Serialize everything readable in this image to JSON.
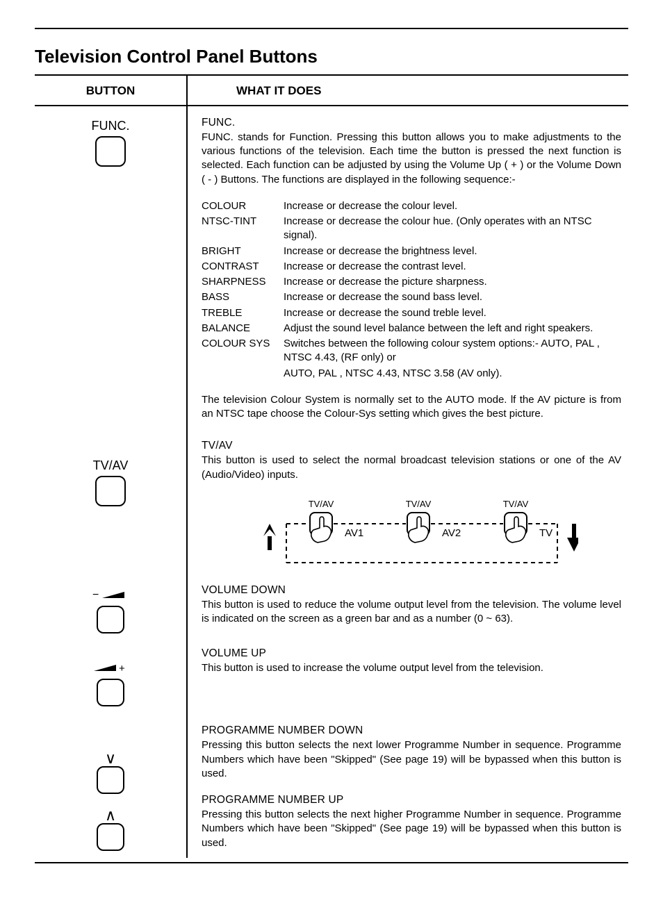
{
  "page": {
    "title": "Television Control Panel Buttons",
    "columns": {
      "button": "BUTTON",
      "what": "WHAT IT DOES"
    },
    "text_color": "#000000",
    "bg_color": "#ffffff"
  },
  "func": {
    "button_label": "FUNC.",
    "heading": "FUNC.",
    "intro": "FUNC. stands for Function. Pressing this button allows you to make adjustments to the various functions of the television. Each time the button is pressed the next function is selected. Each function can be adjusted by using the Volume Up ( + ) or the Volume Down ( - ) Buttons. The functions are displayed in the following sequence:-",
    "items": [
      {
        "name": "COLOUR",
        "desc": "Increase or decrease the colour level."
      },
      {
        "name": "NTSC-TINT",
        "desc": "Increase or decrease the colour hue. (Only operates with an NTSC signal)."
      },
      {
        "name": "BRIGHT",
        "desc": "Increase or decrease the brightness level."
      },
      {
        "name": "CONTRAST",
        "desc": "Increase or decrease the contrast level."
      },
      {
        "name": "SHARPNESS",
        "desc": "Increase or decrease the picture sharpness."
      },
      {
        "name": "BASS",
        "desc": "Increase or decrease the sound bass level."
      },
      {
        "name": "TREBLE",
        "desc": "Increase or decrease the sound treble level."
      },
      {
        "name": "BALANCE",
        "desc": "Adjust the sound level balance between the left and right speakers."
      },
      {
        "name": "COLOUR SYS",
        "desc": "Switches between the following colour system options:- AUTO, PAL , NTSC 4.43, (RF only) or"
      }
    ],
    "colour_sys_extra": "AUTO, PAL , NTSC 4.43, NTSC 3.58 (AV only).",
    "note": "The television Colour System is normally set to the AUTO mode. lf the AV picture is from an NTSC tape choose the Colour-Sys setting which gives the best picture."
  },
  "tvav": {
    "button_label": "TV/AV",
    "heading": "TV/AV",
    "body": "This button is used to select the normal broadcast television stations or one of the AV (Audio/Video) inputs.",
    "diagram": {
      "tick_label": "TV/AV",
      "steps": [
        "AV1",
        "AV2",
        "TV"
      ],
      "stroke": "#000000",
      "dash": "6,5"
    }
  },
  "vol_down": {
    "heading": "VOLUME DOWN",
    "body": "This button is used to reduce the volume output level from the television. The volume level is indicated on the screen as a green bar and as a number (0 ~ 63).",
    "icon_minus": "−",
    "range_text": "(0 ~ 63)"
  },
  "vol_up": {
    "heading": "VOLUME UP",
    "body": "This button is used to increase the volume output level from the television.",
    "icon_plus": "+"
  },
  "prog_down": {
    "heading": "PROGRAMME NUMBER DOWN",
    "body": "Pressing this button selects the next lower Programme Number in sequence. Programme Numbers which have been \"Skipped\" (See page 19) will be bypassed when this button is used.",
    "ref_page": 19,
    "chevron": "∨"
  },
  "prog_up": {
    "heading": "PROGRAMME NUMBER UP",
    "body": "Pressing this button selects the next higher Programme Number in sequence. Programme Numbers which have been \"Skipped\" (See page 19) will be bypassed when this button is used.",
    "ref_page": 19,
    "chevron": "∧"
  }
}
